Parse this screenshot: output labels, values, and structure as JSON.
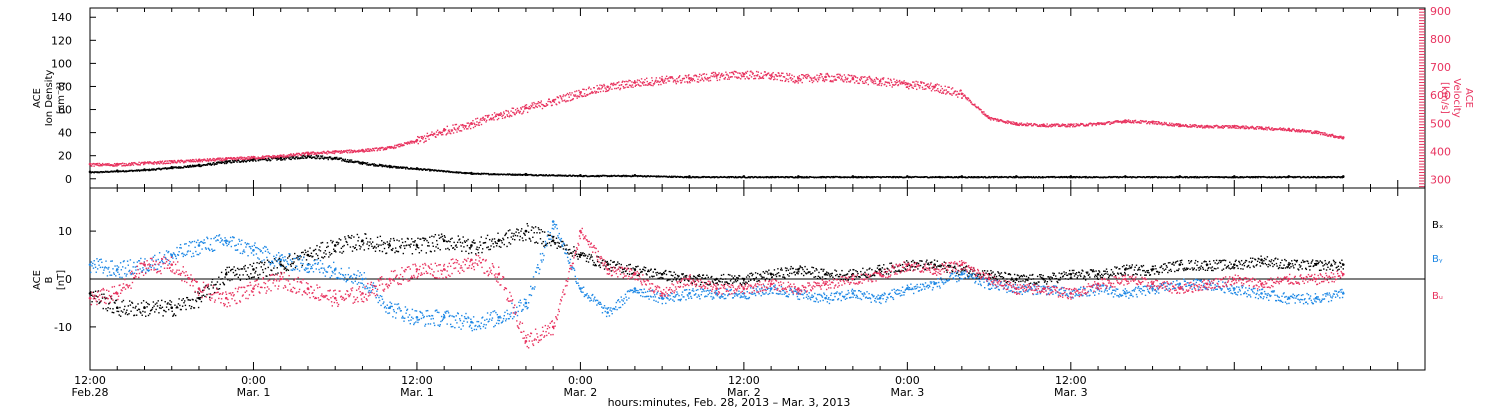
{
  "chart_data": [
    {
      "type": "scatter",
      "panel": "plasma",
      "ylabel_left": [
        "ACE",
        "Ion Density",
        "[cm⁻³]"
      ],
      "ylabel_right": [
        "ACE",
        "Velocity",
        "[km/s]"
      ],
      "ylim_left": [
        -8,
        148
      ],
      "ylim_right": [
        270,
        910
      ],
      "yticks_left": [
        0,
        20,
        40,
        60,
        80,
        100,
        120,
        140
      ],
      "yticks_right": [
        300,
        400,
        500,
        600,
        700,
        800,
        900
      ],
      "x_unit": "hours since Feb 28 12:00",
      "series": [
        {
          "name": "",
          "axis": "left",
          "color": "#000000",
          "x": [
            0,
            2,
            4,
            6,
            8,
            10,
            12,
            14,
            16,
            18,
            20,
            22,
            24,
            28,
            32,
            36,
            40,
            44,
            48,
            52,
            56,
            60,
            64,
            68,
            72,
            76,
            80,
            84,
            88,
            92
          ],
          "y": [
            6,
            7,
            8,
            10,
            12,
            15,
            17,
            18,
            20,
            18,
            14,
            11,
            9,
            5,
            4,
            3,
            3,
            2,
            2,
            2,
            2,
            2,
            2,
            2,
            2,
            2,
            2,
            2,
            2,
            2
          ]
        },
        {
          "name": "",
          "axis": "right",
          "color": "#e8335f",
          "x": [
            0,
            2,
            4,
            6,
            8,
            10,
            12,
            14,
            16,
            18,
            20,
            22,
            24,
            26,
            28,
            30,
            32,
            34,
            36,
            38,
            40,
            42,
            44,
            46,
            48,
            50,
            52,
            54,
            56,
            58,
            60,
            62,
            64,
            66,
            68,
            70,
            72,
            74,
            76,
            78,
            80,
            82,
            84,
            86,
            88,
            90,
            92
          ],
          "y": [
            355,
            355,
            360,
            365,
            370,
            375,
            380,
            385,
            395,
            400,
            405,
            415,
            440,
            475,
            500,
            530,
            555,
            580,
            610,
            630,
            645,
            655,
            660,
            670,
            675,
            670,
            660,
            665,
            660,
            650,
            640,
            630,
            605,
            520,
            500,
            495,
            495,
            500,
            510,
            505,
            495,
            490,
            490,
            485,
            480,
            470,
            450
          ]
        }
      ]
    },
    {
      "type": "scatter",
      "panel": "magnetic",
      "ylabel_left": [
        "ACE",
        "B",
        "[nT]"
      ],
      "ylim": [
        -19,
        19
      ],
      "yticks": [
        -10,
        0,
        10
      ],
      "x_unit": "hours since Feb 28 12:00",
      "legend": [
        "Bₓ",
        "Bᵧ",
        "Bᵤ"
      ],
      "legend_position": "right",
      "zero_line": true,
      "series": [
        {
          "name": "Bx",
          "color": "#000000",
          "x": [
            0,
            2,
            4,
            6,
            8,
            10,
            12,
            14,
            16,
            18,
            20,
            22,
            24,
            26,
            28,
            30,
            32,
            34,
            36,
            38,
            40,
            42,
            44,
            46,
            48,
            50,
            52,
            54,
            56,
            58,
            60,
            62,
            64,
            66,
            68,
            70,
            72,
            74,
            76,
            78,
            80,
            82,
            84,
            86,
            88,
            90,
            92
          ],
          "y": [
            -3,
            -6,
            -6,
            -6,
            -4,
            1,
            2,
            3,
            5,
            7,
            8,
            7,
            7,
            8,
            7,
            8,
            10,
            8,
            5,
            3,
            2,
            1,
            0,
            0,
            0,
            1,
            2,
            1,
            1,
            2,
            3,
            3,
            2,
            1,
            0,
            0,
            1,
            1,
            2,
            2,
            3,
            3,
            3,
            4,
            3,
            3,
            3
          ]
        },
        {
          "name": "By",
          "color": "#1e88e5",
          "x": [
            0,
            2,
            4,
            6,
            8,
            10,
            12,
            14,
            16,
            18,
            20,
            22,
            24,
            26,
            28,
            30,
            32,
            34,
            36,
            38,
            40,
            42,
            44,
            46,
            48,
            50,
            52,
            54,
            56,
            58,
            60,
            62,
            64,
            66,
            68,
            70,
            72,
            74,
            76,
            78,
            80,
            82,
            84,
            86,
            88,
            90,
            92
          ],
          "y": [
            3,
            2,
            3,
            5,
            7,
            8,
            6,
            4,
            3,
            2,
            0,
            -6,
            -8,
            -8,
            -9,
            -8,
            -5,
            12,
            -2,
            -7,
            -2,
            -4,
            -3,
            -3,
            -3,
            -2,
            -3,
            -4,
            -3,
            -4,
            -2,
            -1,
            1,
            -1,
            -2,
            -2,
            -3,
            -2,
            -3,
            -2,
            -1,
            -1,
            -2,
            -3,
            -4,
            -4,
            -3
          ]
        },
        {
          "name": "Bz",
          "color": "#e8335f",
          "x": [
            0,
            2,
            4,
            6,
            8,
            10,
            12,
            14,
            16,
            18,
            20,
            22,
            24,
            26,
            28,
            30,
            32,
            34,
            36,
            38,
            40,
            42,
            44,
            46,
            48,
            50,
            52,
            54,
            56,
            58,
            60,
            62,
            64,
            66,
            68,
            70,
            72,
            74,
            76,
            78,
            80,
            82,
            84,
            86,
            88,
            90,
            92
          ],
          "y": [
            -4,
            -3,
            3,
            3,
            -2,
            -4,
            -2,
            0,
            -2,
            -4,
            -3,
            0,
            2,
            2,
            4,
            1,
            -13,
            -10,
            10,
            2,
            1,
            -3,
            0,
            -2,
            -2,
            -1,
            -2,
            -1,
            0,
            1,
            3,
            2,
            3,
            0,
            -2,
            -2,
            -3,
            -1,
            0,
            -1,
            -2,
            -1,
            0,
            -1,
            0,
            0,
            1
          ]
        }
      ]
    }
  ],
  "x_axis": {
    "xlim": [
      0,
      98
    ],
    "ticks": [
      {
        "x": 0,
        "time": "12:00",
        "date": "Feb.28"
      },
      {
        "x": 12,
        "time": "0:00",
        "date": "Mar. 1"
      },
      {
        "x": 24,
        "time": "12:00",
        "date": "Mar. 1"
      },
      {
        "x": 36,
        "time": "0:00",
        "date": "Mar. 2"
      },
      {
        "x": 48,
        "time": "12:00",
        "date": "Mar. 2"
      },
      {
        "x": 60,
        "time": "0:00",
        "date": "Mar. 3"
      },
      {
        "x": 72,
        "time": "12:00",
        "date": "Mar. 3"
      }
    ],
    "label": "hours:minutes, Feb. 28, 2013 – Mar.  3, 2013"
  }
}
